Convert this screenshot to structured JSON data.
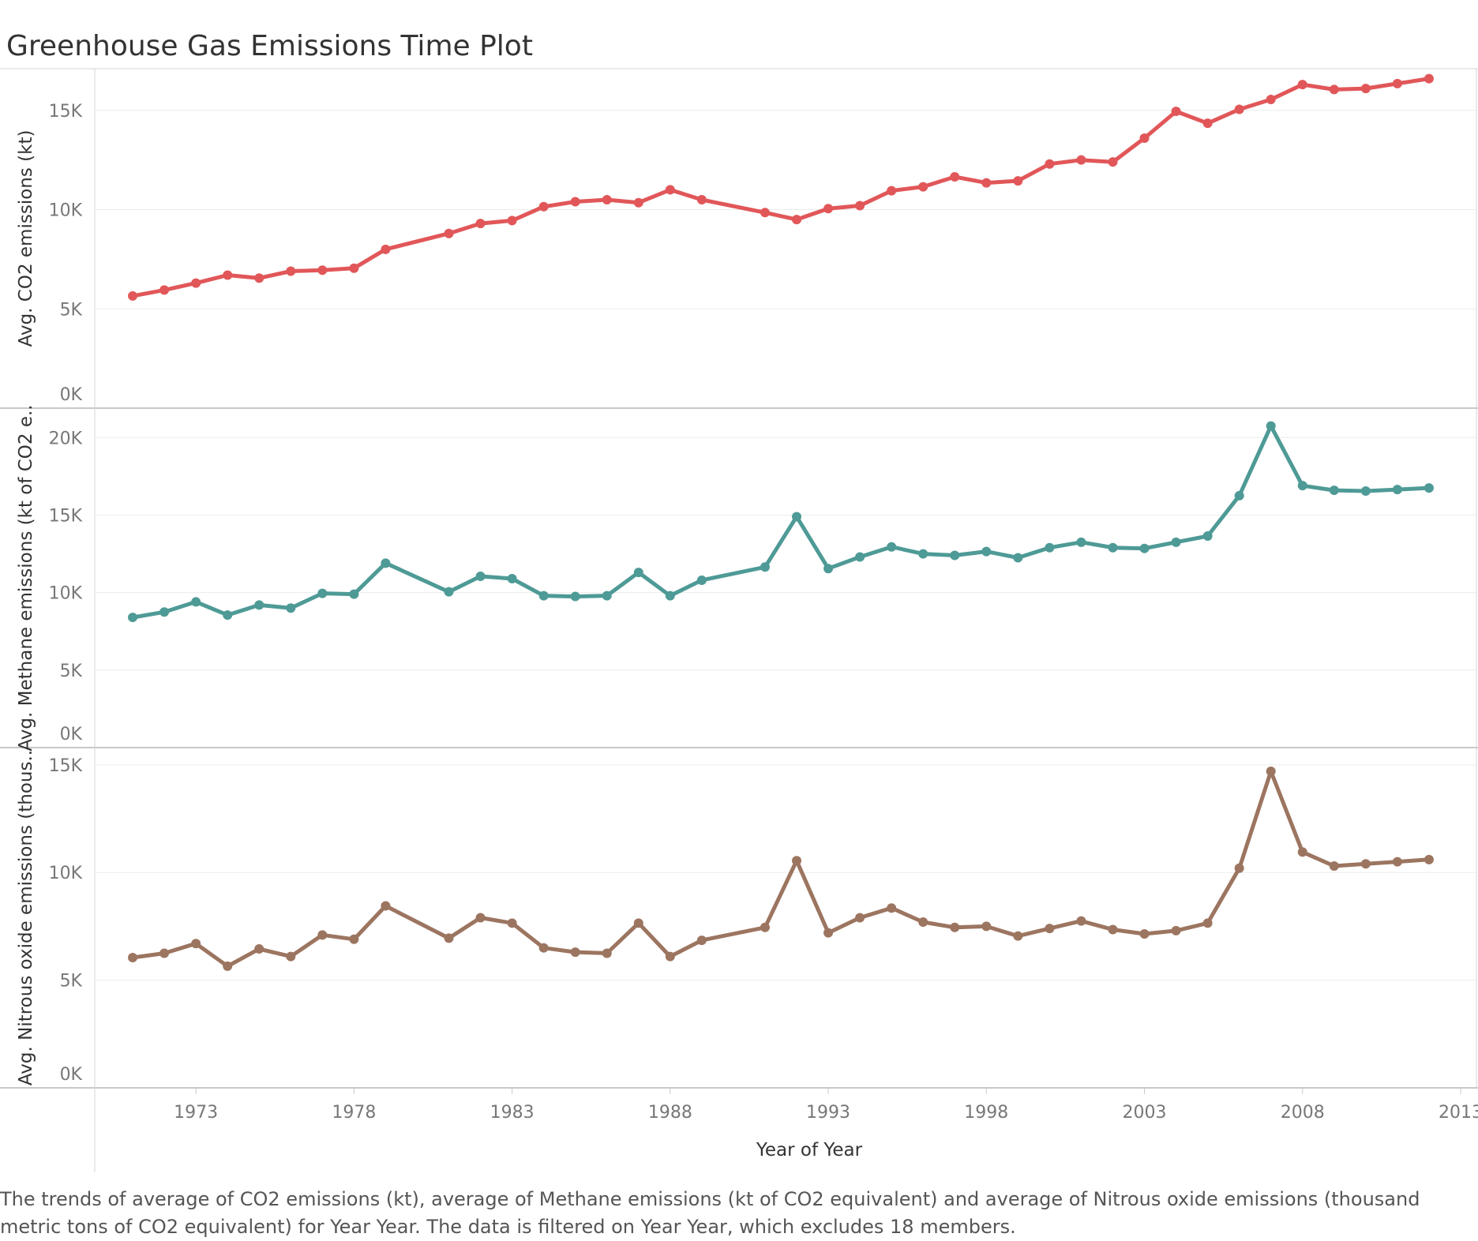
{
  "title": "Greenhouse Gas Emissions Time Plot",
  "caption": "The trends of average of CO2 emissions (kt), average of Methane emissions (kt of CO2 equivalent) and average of Nitrous oxide emissions (thousand metric tons of CO2 equivalent) for Year Year. The data is filtered on Year Year, which excludes 18 members.",
  "chart_data": {
    "type": "line",
    "xlabel": "Year of Year",
    "x_ticks": [
      "1973",
      "1978",
      "1983",
      "1988",
      "1993",
      "1998",
      "2003",
      "2008",
      "2013"
    ],
    "xlim": [
      1969.8,
      2013.5
    ],
    "x": [
      1971,
      1972,
      1973,
      1974,
      1975,
      1976,
      1977,
      1978,
      1979,
      1981,
      1982,
      1983,
      1984,
      1985,
      1986,
      1987,
      1988,
      1989,
      1991,
      1992,
      1993,
      1994,
      1995,
      1996,
      1997,
      1998,
      1999,
      2000,
      2001,
      2002,
      2003,
      2004,
      2005,
      2006,
      2007,
      2008,
      2009,
      2010,
      2011,
      2012
    ],
    "panels": [
      {
        "ylabel": "Avg. CO2 emissions (kt)",
        "y_ticks": [
          0,
          5000,
          10000,
          15000
        ],
        "y_tick_labels": [
          "0K",
          "5K",
          "10K",
          "15K"
        ],
        "ylim": [
          0,
          17100
        ],
        "color": "#e15759",
        "values": [
          5650,
          5950,
          6300,
          6700,
          6550,
          6900,
          6950,
          7050,
          8000,
          8800,
          9300,
          9450,
          10150,
          10400,
          10500,
          10350,
          11000,
          10500,
          9850,
          9500,
          10050,
          10200,
          10950,
          11150,
          11650,
          11350,
          11450,
          12300,
          12500,
          12400,
          13600,
          14950,
          14350,
          15050,
          15550,
          16300,
          16050,
          16100,
          16350,
          16600
        ]
      },
      {
        "ylabel": "Avg. Methane emissions (kt of CO2 e..",
        "y_ticks": [
          0,
          5000,
          10000,
          15000,
          20000
        ],
        "y_tick_labels": [
          "0K",
          "5K",
          "10K",
          "15K",
          "20K"
        ],
        "ylim": [
          0,
          21900
        ],
        "color": "#4e9a96",
        "values": [
          8400,
          8750,
          9400,
          8550,
          9200,
          9000,
          9950,
          9900,
          11900,
          10050,
          11050,
          10900,
          9800,
          9750,
          9800,
          11300,
          9800,
          10800,
          11650,
          14900,
          11550,
          12300,
          12950,
          12500,
          12400,
          12650,
          12250,
          12900,
          13250,
          12900,
          12850,
          13250,
          13650,
          16250,
          20750,
          16900,
          16600,
          16550,
          16650,
          16750
        ]
      },
      {
        "ylabel": "Avg. Nitrous oxide emissions (thous..",
        "y_ticks": [
          0,
          5000,
          10000,
          15000
        ],
        "y_tick_labels": [
          "0K",
          "5K",
          "10K",
          "15K"
        ],
        "ylim": [
          0,
          15800
        ],
        "color": "#9c7560",
        "values": [
          6050,
          6250,
          6700,
          5650,
          6450,
          6100,
          7100,
          6900,
          8450,
          6950,
          7900,
          7650,
          6500,
          6300,
          6250,
          7650,
          6100,
          6850,
          7450,
          10550,
          7200,
          7900,
          8350,
          7700,
          7450,
          7500,
          7050,
          7400,
          7750,
          7350,
          7150,
          7300,
          7650,
          10200,
          14700,
          10950,
          10300,
          10400,
          10500,
          10600
        ]
      }
    ]
  }
}
